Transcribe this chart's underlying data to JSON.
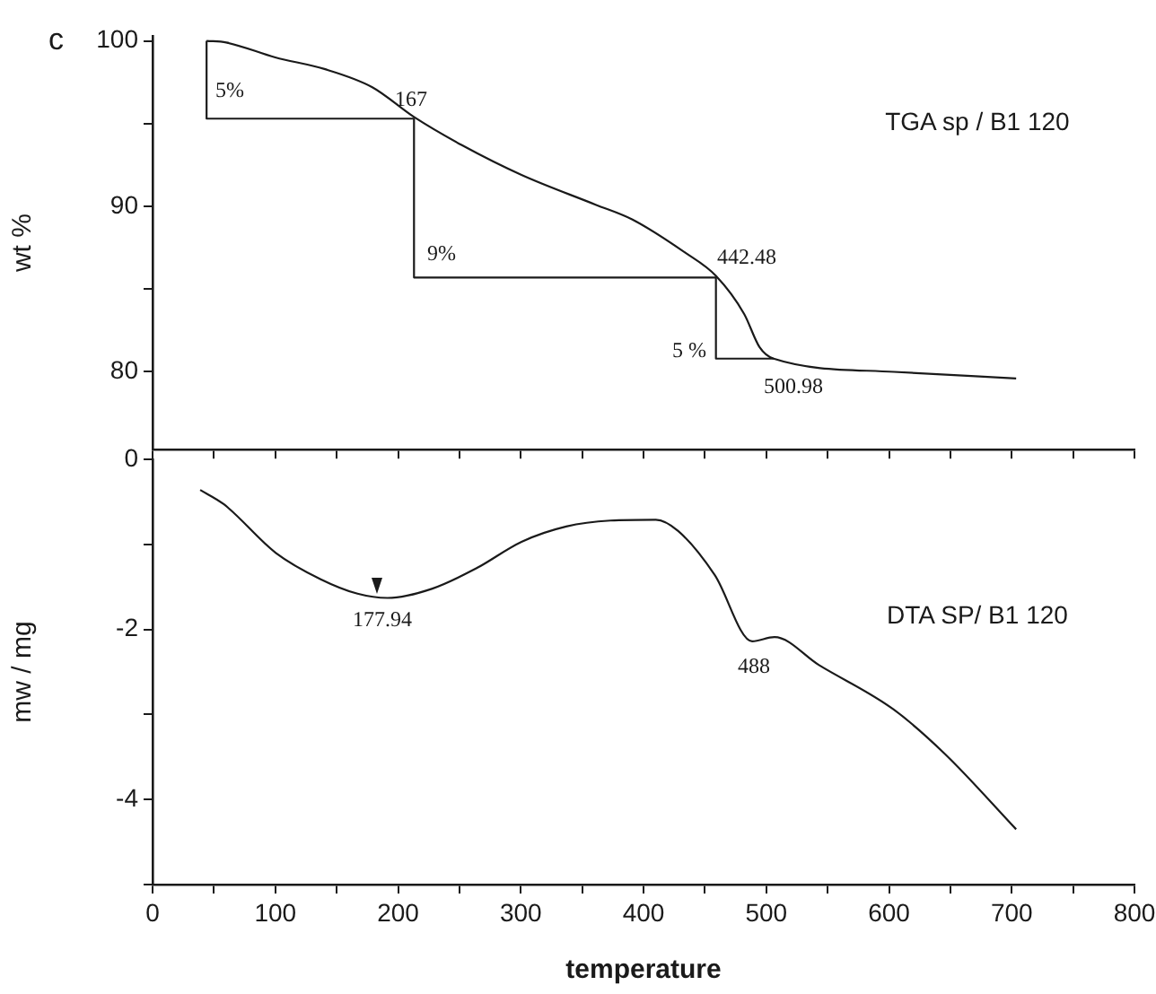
{
  "chart_data": [
    {
      "type": "line",
      "ylabel": "wt %",
      "xlim": [
        0,
        800
      ],
      "xticks": [
        0,
        {
          "value": 50,
          "label": null
        },
        100,
        {
          "value": 150,
          "label": null
        },
        200,
        {
          "value": 250,
          "label": null
        },
        300,
        {
          "value": 350,
          "label": null
        },
        400,
        {
          "value": 450,
          "label": null
        },
        500,
        {
          "value": 550,
          "label": null
        },
        600,
        {
          "value": 650,
          "label": null
        },
        700,
        {
          "value": 750,
          "label": null
        },
        800
      ],
      "ylim": [
        75.3,
        100.3
      ],
      "yticks": [
        {
          "value": 80,
          "label": "80"
        },
        {
          "value": 85,
          "label": null
        },
        {
          "value": 90,
          "label": "90"
        },
        {
          "value": 95,
          "label": null
        },
        {
          "value": 100,
          "label": "100"
        }
      ],
      "tick_labels": "y",
      "grid": false,
      "legend": false,
      "marker": "none",
      "line_style": "solid",
      "series": [
        {
          "name": "TGA sp / B1 120",
          "color": "#1a1a1a",
          "x": [
            44,
            60,
            100,
            140,
            179,
            213,
            252,
            300.6,
            361,
            391,
            434,
            459,
            482,
            494.5,
            506,
            604,
            703.6
          ],
          "values": [
            100,
            99.9,
            99.0,
            98.3,
            97.2,
            95.4,
            93.7,
            91.9,
            90.1,
            89.2,
            87.2,
            85.8,
            83.5,
            81.5,
            80.8,
            80.0,
            79.6
          ]
        },
        {
          "color": "#1a1a1a",
          "x": [
            44,
            44,
            213,
            213,
            459,
            459,
            506
          ],
          "values": [
            100,
            95.3,
            95.3,
            85.7,
            85.7,
            80.8,
            80.8
          ]
        }
      ],
      "annotations": [
        "c",
        "5%",
        "167",
        "9%",
        "442.48",
        "5 %",
        "500.98"
      ]
    },
    {
      "type": "line",
      "xlabel": "temperature",
      "ylabel": "mw / mg",
      "xlim": [
        0,
        800
      ],
      "xticks": [
        0,
        {
          "value": 50,
          "label": null
        },
        100,
        {
          "value": 150,
          "label": null
        },
        200,
        {
          "value": 250,
          "label": null
        },
        300,
        {
          "value": 350,
          "label": null
        },
        400,
        {
          "value": 450,
          "label": null
        },
        500,
        {
          "value": 550,
          "label": null
        },
        600,
        {
          "value": 650,
          "label": null
        },
        700,
        {
          "value": 750,
          "label": null
        },
        800
      ],
      "ylim": [
        -5,
        0
      ],
      "yticks": [
        0,
        {
          "value": -1,
          "label": null
        },
        -2,
        {
          "value": -3,
          "label": null
        },
        -4,
        {
          "value": -5,
          "label": null
        }
      ],
      "grid": false,
      "legend": false,
      "marker": "none",
      "line_style": "solid",
      "series": [
        {
          "name": "DTA SP/ B1 120",
          "color": "#1a1a1a",
          "x": [
            38.8,
            58.2,
            100.4,
            137,
            167,
            191.5,
            228,
            264,
            300.6,
            337,
            373,
            410,
            428,
            458,
            488.5,
            506.7,
            543,
            603.6,
            646,
            703.6
          ],
          "values": [
            -0.36,
            -0.53,
            -1.1,
            -1.41,
            -1.58,
            -1.63,
            -1.52,
            -1.28,
            -0.97,
            -0.79,
            -0.72,
            -0.71,
            -0.84,
            -1.36,
            -2.14,
            -2.09,
            -2.42,
            -2.94,
            -3.47,
            -4.35
          ]
        }
      ],
      "annotations": [
        "177.94",
        "488"
      ]
    }
  ]
}
